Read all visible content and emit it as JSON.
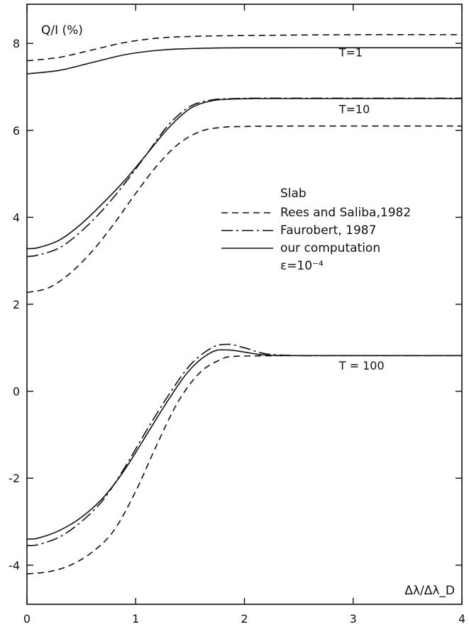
{
  "chart_data": {
    "type": "line",
    "xlabel": "Δλ/Δλ_D",
    "ylabel": "Q/I (%)",
    "xlim": [
      0,
      4
    ],
    "ylim": [
      -4.9,
      8.9
    ],
    "xticks": [
      0,
      1,
      2,
      3,
      4
    ],
    "yticks": [
      -4,
      -2,
      0,
      2,
      4,
      6,
      8
    ],
    "grid": false,
    "legend": {
      "title": "Slab",
      "placement": "center-right",
      "entries": [
        {
          "label": "Rees and Saliba,1982",
          "style": "dashed"
        },
        {
          "label": "Faurobert, 1987",
          "style": "dashdot"
        },
        {
          "label": "our computation",
          "style": "solid",
          "sublabel": "ε=10⁻⁴"
        }
      ]
    },
    "curve_labels": [
      {
        "text": "T=1",
        "x": 3.0,
        "y": 7.7
      },
      {
        "text": "T=10",
        "x": 3.0,
        "y": 6.4
      },
      {
        "text": "T = 100",
        "x": 3.0,
        "y": 0.5
      }
    ],
    "series": [
      {
        "group": "T=1",
        "style": "dashed",
        "x": [
          0,
          0.3,
          0.6,
          0.9,
          1.2,
          1.5,
          2,
          3,
          4
        ],
        "y": [
          7.6,
          7.68,
          7.85,
          8.02,
          8.12,
          8.16,
          8.18,
          8.2,
          8.2
        ]
      },
      {
        "group": "T=1",
        "style": "solid",
        "x": [
          0,
          0.3,
          0.6,
          0.9,
          1.2,
          1.5,
          2,
          3,
          4
        ],
        "y": [
          7.3,
          7.38,
          7.56,
          7.74,
          7.84,
          7.88,
          7.9,
          7.9,
          7.9
        ]
      },
      {
        "group": "T=10",
        "style": "solid",
        "x": [
          0,
          0.1,
          0.3,
          0.5,
          0.7,
          0.9,
          1.1,
          1.3,
          1.5,
          1.7,
          1.9,
          2.1,
          2.5,
          3,
          4
        ],
        "y": [
          3.28,
          3.3,
          3.48,
          3.85,
          4.33,
          4.85,
          5.45,
          6.05,
          6.5,
          6.68,
          6.72,
          6.73,
          6.73,
          6.73,
          6.73
        ]
      },
      {
        "group": "T=10",
        "style": "dashdot",
        "x": [
          0,
          0.1,
          0.3,
          0.5,
          0.7,
          0.9,
          1.1,
          1.3,
          1.5,
          1.7,
          1.9,
          2.1,
          2.5,
          3,
          4
        ],
        "y": [
          3.1,
          3.13,
          3.3,
          3.68,
          4.18,
          4.78,
          5.45,
          6.12,
          6.55,
          6.7,
          6.73,
          6.74,
          6.74,
          6.74,
          6.74
        ]
      },
      {
        "group": "T=10",
        "style": "dashed",
        "x": [
          0,
          0.2,
          0.4,
          0.6,
          0.8,
          1.0,
          1.2,
          1.4,
          1.6,
          1.8,
          2.0,
          2.5,
          3,
          4
        ],
        "y": [
          2.27,
          2.38,
          2.72,
          3.22,
          3.85,
          4.55,
          5.2,
          5.7,
          5.98,
          6.07,
          6.09,
          6.1,
          6.1,
          6.1
        ]
      },
      {
        "group": "T=100",
        "style": "solid",
        "x": [
          0,
          0.1,
          0.3,
          0.5,
          0.7,
          0.9,
          1.1,
          1.3,
          1.5,
          1.7,
          1.85,
          2.0,
          2.2,
          2.5,
          3,
          4
        ],
        "y": [
          -3.4,
          -3.38,
          -3.2,
          -2.9,
          -2.45,
          -1.8,
          -1.0,
          -0.2,
          0.5,
          0.9,
          0.95,
          0.9,
          0.83,
          0.82,
          0.82,
          0.82
        ]
      },
      {
        "group": "T=100",
        "style": "dashdot",
        "x": [
          0,
          0.1,
          0.3,
          0.5,
          0.7,
          0.9,
          1.1,
          1.3,
          1.5,
          1.7,
          1.85,
          2.0,
          2.2,
          2.5,
          3,
          4
        ],
        "y": [
          -3.55,
          -3.53,
          -3.35,
          -3.0,
          -2.5,
          -1.75,
          -0.9,
          -0.1,
          0.6,
          1.0,
          1.08,
          1.0,
          0.86,
          0.82,
          0.82,
          0.82
        ]
      },
      {
        "group": "T=100",
        "style": "dashed",
        "x": [
          0,
          0.2,
          0.4,
          0.6,
          0.8,
          1.0,
          1.2,
          1.4,
          1.6,
          1.8,
          1.9,
          2.0,
          2.5,
          3,
          4
        ],
        "y": [
          -4.2,
          -4.15,
          -4.0,
          -3.7,
          -3.2,
          -2.3,
          -1.2,
          -0.2,
          0.45,
          0.75,
          0.8,
          0.81,
          0.82,
          0.82,
          0.82
        ]
      }
    ]
  }
}
